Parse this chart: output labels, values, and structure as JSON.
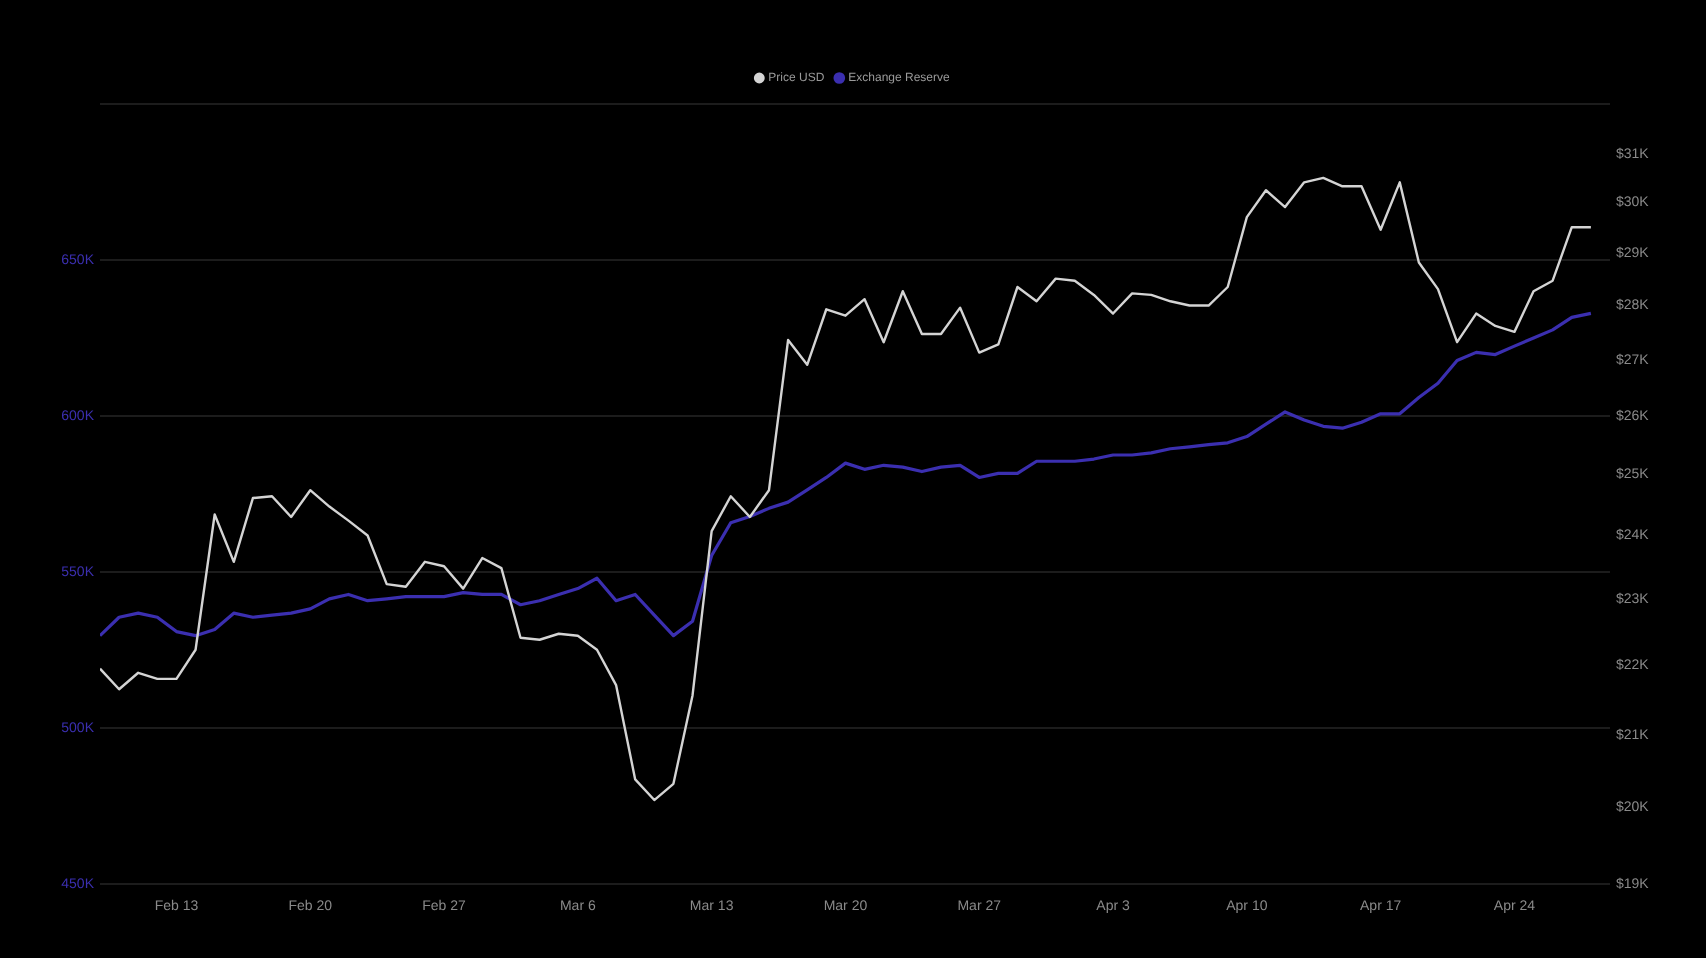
{
  "chart_data": {
    "type": "line",
    "legend": "top",
    "grid": "y",
    "log": "y2",
    "marker": "none",
    "line_style": "solid",
    "x": [
      "--02-09",
      "--02-10",
      "--02-11",
      "--02-12",
      "--02-13",
      "--02-14",
      "--02-15",
      "--02-16",
      "--02-17",
      "--02-18",
      "--02-19",
      "--02-20",
      "--02-21",
      "--02-22",
      "--02-23",
      "--02-24",
      "--02-25",
      "--02-26",
      "--02-27",
      "--02-28",
      "--03-01",
      "--03-02",
      "--03-03",
      "--03-04",
      "--03-05",
      "--03-06",
      "--03-07",
      "--03-08",
      "--03-09",
      "--03-10",
      "--03-11",
      "--03-12",
      "--03-13",
      "--03-14",
      "--03-15",
      "--03-16",
      "--03-17",
      "--03-18",
      "--03-19",
      "--03-20",
      "--03-21",
      "--03-22",
      "--03-23",
      "--03-24",
      "--03-25",
      "--03-26",
      "--03-27",
      "--03-28",
      "--03-29",
      "--03-30",
      "--03-31",
      "--04-01",
      "--04-02",
      "--04-03",
      "--04-04",
      "--04-05",
      "--04-06",
      "--04-07",
      "--04-08",
      "--04-09",
      "--04-10",
      "--04-11",
      "--04-12",
      "--04-13",
      "--04-14",
      "--04-15",
      "--04-16",
      "--04-17",
      "--04-18",
      "--04-19",
      "--04-20",
      "--04-21",
      "--04-22",
      "--04-23",
      "--04-24",
      "--04-25",
      "--04-26",
      "--04-27",
      "--04-28"
    ],
    "xlim": [
      "--02-09",
      "--04-29"
    ],
    "xticks": [
      {
        "value": "--02-13",
        "label": "Feb 13"
      },
      {
        "value": "--02-20",
        "label": "Feb 20"
      },
      {
        "value": "--02-27",
        "label": "Feb 27"
      },
      {
        "value": "--03-06",
        "label": "Mar 6"
      },
      {
        "value": "--03-13",
        "label": "Mar 13"
      },
      {
        "value": "--03-20",
        "label": "Mar 20"
      },
      {
        "value": "--03-27",
        "label": "Mar 27"
      },
      {
        "value": "--04-03",
        "label": "Apr 3"
      },
      {
        "value": "--04-10",
        "label": "Apr 10"
      },
      {
        "value": "--04-17",
        "label": "Apr 17"
      },
      {
        "value": "--04-24",
        "label": "Apr 24"
      }
    ],
    "ylim": [
      450000,
      700000
    ],
    "yticks": [
      {
        "value": 450000,
        "label": "450K"
      },
      {
        "value": 500000,
        "label": "500K"
      },
      {
        "value": 550000,
        "label": "550K"
      },
      {
        "value": 600000,
        "label": "600K"
      },
      {
        "value": 650000,
        "label": "650K"
      },
      {
        "value": 700000,
        "label": null
      }
    ],
    "y2lim": [
      19000,
      32050
    ],
    "y2ticks": [
      {
        "value": 19000,
        "label": "$19K"
      },
      {
        "value": 20000,
        "label": "$20K"
      },
      {
        "value": 21000,
        "label": "$21K"
      },
      {
        "value": 22000,
        "label": "$22K"
      },
      {
        "value": 23000,
        "label": "$23K"
      },
      {
        "value": 24000,
        "label": "$24K"
      },
      {
        "value": 25000,
        "label": "$25K"
      },
      {
        "value": 26000,
        "label": "$26K"
      },
      {
        "value": 27000,
        "label": "$27K"
      },
      {
        "value": 28000,
        "label": "$28K"
      },
      {
        "value": 29000,
        "label": "$29K"
      },
      {
        "value": 30000,
        "label": "$30K"
      },
      {
        "value": 31000,
        "label": "$31K"
      }
    ],
    "series": [
      {
        "name": "Price USD",
        "color": "#d4d4d4",
        "axis": "y2",
        "values": [
          21950,
          21650,
          21890,
          21800,
          21800,
          22230,
          24340,
          23580,
          24610,
          24640,
          24300,
          24740,
          24470,
          24240,
          24000,
          23230,
          23190,
          23580,
          23510,
          23160,
          23640,
          23480,
          22410,
          22380,
          22470,
          22440,
          22230,
          21710,
          20380,
          20100,
          20320,
          21560,
          24070,
          24640,
          24300,
          24740,
          27360,
          26910,
          27930,
          27810,
          28120,
          27320,
          28270,
          27470,
          27470,
          27960,
          27130,
          27280,
          28350,
          28080,
          28510,
          28470,
          28200,
          27850,
          28230,
          28200,
          28080,
          28000,
          28000,
          28350,
          29710,
          30250,
          29910,
          30410,
          30500,
          30330,
          30330,
          29460,
          30410,
          28820,
          28310,
          27320,
          27850,
          27620,
          27510,
          28270,
          28470,
          29510,
          29510
        ]
      },
      {
        "name": "Exchange Reserve",
        "color": "#3b2fb0",
        "axis": "y",
        "values": [
          529600,
          535500,
          536800,
          535500,
          530900,
          529600,
          531600,
          536800,
          535500,
          536200,
          536800,
          538200,
          541400,
          542800,
          540800,
          541400,
          542100,
          542100,
          542100,
          543400,
          542800,
          542800,
          539500,
          540800,
          542800,
          544700,
          548000,
          540800,
          542800,
          536200,
          529600,
          534200,
          555300,
          565800,
          567800,
          570400,
          572400,
          576300,
          580300,
          584900,
          582900,
          584200,
          583600,
          582200,
          583600,
          584200,
          580300,
          581600,
          581600,
          585500,
          585500,
          585500,
          586200,
          587500,
          587500,
          588200,
          589500,
          590100,
          590800,
          591400,
          593400,
          597400,
          601300,
          598700,
          596700,
          596100,
          598000,
          600700,
          600700,
          605900,
          610500,
          617800,
          620400,
          619700,
          622400,
          625000,
          627600,
          631600,
          632900
        ]
      }
    ]
  }
}
